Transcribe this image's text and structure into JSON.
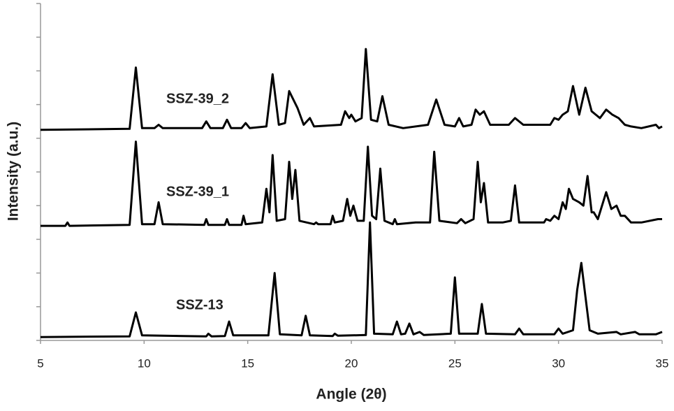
{
  "chart_data": {
    "type": "line",
    "xlabel": "Angle  (2θ)",
    "ylabel": "Intensity (a.u.)",
    "xlim": [
      5,
      35
    ],
    "xticks": [
      5,
      10,
      15,
      20,
      25,
      30,
      35
    ],
    "ylim": [
      0,
      100
    ],
    "yticks": [
      0,
      10,
      20,
      30,
      40,
      50,
      60,
      70,
      80,
      90,
      100
    ],
    "ytick_labels": false,
    "series": [
      {
        "name": "SSZ-13",
        "color": "#000000",
        "x": [
          5,
          9.3,
          9.6,
          9.9,
          13.0,
          13.1,
          13.25,
          13.9,
          14.1,
          14.3,
          16.0,
          16.3,
          16.55,
          17.6,
          17.8,
          18.0,
          19.1,
          19.2,
          19.35,
          20.7,
          20.9,
          21.1,
          22.0,
          22.2,
          22.4,
          22.6,
          22.8,
          23.0,
          23.3,
          23.5,
          24.8,
          25.0,
          25.2,
          26.1,
          26.3,
          26.5,
          27.9,
          28.1,
          28.3,
          29.8,
          30.0,
          30.2,
          30.7,
          30.9,
          31.1,
          31.3,
          31.5,
          31.9,
          32.8,
          33.0,
          33.7,
          33.9,
          34.7,
          35
        ],
        "values": [
          1,
          1.2,
          8.3,
          1.5,
          1.2,
          2,
          1.2,
          1.3,
          5.6,
          1.5,
          1.5,
          20,
          1.8,
          1.5,
          7.3,
          1.5,
          1.3,
          2,
          1.4,
          1.6,
          35,
          2,
          1.8,
          5.6,
          1.8,
          2,
          5,
          1.8,
          2.5,
          1.6,
          2,
          18.7,
          2,
          2,
          10.8,
          2,
          1.8,
          3.5,
          1.8,
          1.8,
          3.5,
          2,
          3,
          15,
          23,
          13,
          3,
          2,
          2.5,
          1.8,
          2.5,
          1.8,
          1.8,
          2.5
        ]
      },
      {
        "name": "SSZ-39_1",
        "color": "#000000",
        "x": [
          5,
          6.2,
          6.3,
          6.4,
          9.3,
          9.6,
          9.9,
          10.5,
          10.7,
          10.9,
          12.9,
          13.0,
          13.1,
          13.9,
          14.0,
          14.1,
          14.7,
          14.8,
          14.9,
          15.7,
          15.9,
          16.05,
          16.2,
          16.4,
          16.8,
          17.0,
          17.15,
          17.3,
          17.5,
          18.2,
          18.3,
          18.4,
          19.0,
          19.1,
          19.2,
          19.6,
          19.8,
          19.95,
          20.1,
          20.3,
          20.6,
          20.8,
          21.0,
          21.2,
          21.4,
          21.6,
          22.0,
          22.1,
          22.2,
          23.1,
          23.8,
          24.0,
          24.25,
          25.1,
          25.3,
          25.5,
          25.9,
          26.1,
          26.25,
          26.4,
          26.6,
          27.3,
          27.7,
          27.9,
          28.1,
          29.3,
          29.4,
          29.6,
          29.8,
          30.0,
          30.2,
          30.35,
          30.5,
          30.7,
          31.0,
          31.2,
          31.4,
          31.6,
          31.7,
          31.9,
          32.3,
          32.55,
          32.8,
          33.0,
          33.2,
          33.5,
          34.0,
          34.8,
          35
        ],
        "values": [
          34,
          34,
          35,
          34,
          34.3,
          59,
          34.5,
          34.5,
          41,
          34.5,
          34.3,
          36,
          34.3,
          34.3,
          36,
          34.3,
          34.3,
          37,
          34.5,
          35,
          45,
          38,
          55,
          35.5,
          36,
          53,
          42,
          50.6,
          35.5,
          34.5,
          35,
          34.5,
          34.5,
          37,
          35,
          35.5,
          42,
          37,
          40,
          35.5,
          35.5,
          57.5,
          37,
          36,
          51,
          35.5,
          34.5,
          36,
          34.5,
          35,
          35,
          56,
          35.5,
          34.8,
          36,
          34.8,
          36,
          53,
          41,
          46.7,
          35,
          35,
          35.5,
          46,
          35,
          35,
          36,
          35.5,
          37,
          36,
          41,
          39,
          45,
          42,
          41,
          40,
          48.8,
          38,
          38,
          36,
          44,
          39,
          40,
          37,
          37,
          35,
          35,
          36,
          36
        ]
      },
      {
        "name": "SSZ-39_2",
        "color": "#000000",
        "x": [
          5,
          9.3,
          9.6,
          9.9,
          10.5,
          10.7,
          10.9,
          12.8,
          13.0,
          13.2,
          13.8,
          14.0,
          14.2,
          14.7,
          14.9,
          15.1,
          15.9,
          16.2,
          16.5,
          16.8,
          17.0,
          17.4,
          17.7,
          18.0,
          18.2,
          19.5,
          19.7,
          19.9,
          20.0,
          20.2,
          20.5,
          20.7,
          20.95,
          21.25,
          21.5,
          21.8,
          22.5,
          23.7,
          24.1,
          24.5,
          25.0,
          25.2,
          25.4,
          25.8,
          26.0,
          26.2,
          26.4,
          26.7,
          27.6,
          27.9,
          28.3,
          29.6,
          29.8,
          30.0,
          30.2,
          30.45,
          30.7,
          31.0,
          31.3,
          31.6,
          31.8,
          32.0,
          32.3,
          32.6,
          32.9,
          33.2,
          33.5,
          34.0,
          34.7,
          34.85,
          35
        ],
        "values": [
          62.5,
          62.8,
          81,
          63,
          63,
          64,
          63,
          63,
          65,
          63,
          63,
          65.5,
          63,
          63,
          64.5,
          63,
          63.5,
          79,
          64,
          64.5,
          74,
          69,
          64,
          66,
          63.5,
          64,
          68,
          66,
          67,
          65,
          66,
          86.5,
          65.5,
          65,
          72.5,
          64,
          63,
          64,
          71.5,
          64,
          63.5,
          66,
          63.5,
          64,
          68.5,
          67,
          68,
          64,
          64,
          66,
          64,
          64,
          66,
          65.5,
          67,
          68,
          75.5,
          67,
          75,
          68,
          67,
          66,
          68.5,
          67,
          66,
          64,
          63.5,
          63,
          64,
          63,
          63.5
        ]
      }
    ]
  }
}
